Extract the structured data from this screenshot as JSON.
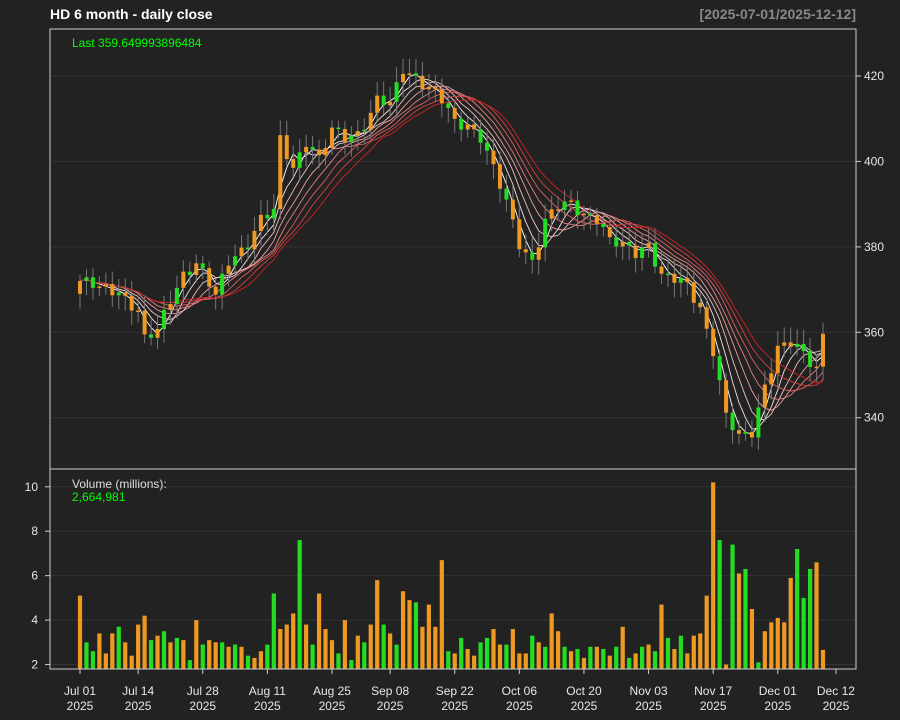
{
  "header": {
    "title": "HD  6 month - daily close",
    "date_range": "[2025-07-01/2025-12-12]"
  },
  "colors": {
    "background": "#222222",
    "up": "#22dd22",
    "down": "#ee9922",
    "ribbon_fast": "#ffffff",
    "ribbon_slow": "#cc2222",
    "label_green": "#00ff00",
    "grid": "#333333"
  },
  "chart_data": [
    {
      "type": "candlestick",
      "panel": "price",
      "last_label": "Last 359.649993896484",
      "ylim": [
        328,
        431
      ],
      "yticks": [
        "340",
        "360",
        "380",
        "400",
        "420"
      ],
      "ytick_values": [
        340,
        360,
        380,
        400,
        420
      ],
      "grid": true,
      "overlay": "moving-average ribbon (white to red)",
      "x_tick_labels": [
        [
          "Jul 01",
          "2025"
        ],
        [
          "Jul 14",
          "2025"
        ],
        [
          "Jul 28",
          "2025"
        ],
        [
          "Aug 11",
          "2025"
        ],
        [
          "Aug 25",
          "2025"
        ],
        [
          "Sep 08",
          "2025"
        ],
        [
          "Sep 22",
          "2025"
        ],
        [
          "Oct 06",
          "2025"
        ],
        [
          "Oct 20",
          "2025"
        ],
        [
          "Nov 03",
          "2025"
        ],
        [
          "Nov 17",
          "2025"
        ],
        [
          "Dec 01",
          "2025"
        ],
        [
          "Dec 12",
          "2025"
        ]
      ],
      "x_tick_index": [
        0,
        9,
        19,
        29,
        39,
        48,
        58,
        68,
        78,
        88,
        98,
        108,
        117
      ],
      "close_keypoints": [
        [
          0,
          372
        ],
        [
          3,
          370
        ],
        [
          6,
          370
        ],
        [
          9,
          365
        ],
        [
          10,
          358
        ],
        [
          12,
          360
        ],
        [
          14,
          368
        ],
        [
          16,
          374
        ],
        [
          18,
          376
        ],
        [
          20,
          371
        ],
        [
          21,
          368
        ],
        [
          23,
          377
        ],
        [
          26,
          381
        ],
        [
          28,
          386
        ],
        [
          30,
          388
        ],
        [
          31,
          405
        ],
        [
          33,
          399
        ],
        [
          35,
          405
        ],
        [
          37,
          400
        ],
        [
          39,
          407
        ],
        [
          41,
          406
        ],
        [
          43,
          407
        ],
        [
          45,
          411
        ],
        [
          46,
          414
        ],
        [
          48,
          413
        ],
        [
          50,
          422
        ],
        [
          52,
          420
        ],
        [
          54,
          417
        ],
        [
          56,
          414
        ],
        [
          58,
          409
        ],
        [
          60,
          409
        ],
        [
          62,
          406
        ],
        [
          64,
          398
        ],
        [
          66,
          390
        ],
        [
          68,
          381
        ],
        [
          70,
          377
        ],
        [
          72,
          386
        ],
        [
          74,
          389
        ],
        [
          76,
          390
        ],
        [
          78,
          388
        ],
        [
          80,
          387
        ],
        [
          82,
          381
        ],
        [
          84,
          380
        ],
        [
          86,
          379
        ],
        [
          88,
          381
        ],
        [
          90,
          373
        ],
        [
          92,
          372
        ],
        [
          94,
          371
        ],
        [
          96,
          366
        ],
        [
          98,
          356
        ],
        [
          100,
          340
        ],
        [
          102,
          335
        ],
        [
          104,
          337
        ],
        [
          106,
          348
        ],
        [
          108,
          356
        ],
        [
          110,
          357
        ],
        [
          112,
          355
        ],
        [
          114,
          352
        ],
        [
          115,
          345
        ],
        [
          116,
          352
        ],
        [
          117,
          359.65
        ]
      ]
    },
    {
      "type": "bar",
      "panel": "volume",
      "label": "Volume (millions):",
      "last_value": "2,664,981",
      "ylim": [
        1.8,
        10.8
      ],
      "yticks": [
        "2",
        "4",
        "6",
        "8",
        "10"
      ],
      "ytick_values": [
        2,
        4,
        6,
        8,
        10
      ],
      "values": [
        5.1,
        3.0,
        2.6,
        3.4,
        2.5,
        3.4,
        3.7,
        3.0,
        2.4,
        3.8,
        4.2,
        3.1,
        3.3,
        3.5,
        3.0,
        3.2,
        3.1,
        2.2,
        4.0,
        2.9,
        3.1,
        3.0,
        3.0,
        2.8,
        2.9,
        2.8,
        2.4,
        2.3,
        2.6,
        2.9,
        5.2,
        3.6,
        3.8,
        4.3,
        7.6,
        3.8,
        2.9,
        5.2,
        3.6,
        3.1,
        2.5,
        4.0,
        2.2,
        3.3,
        3.0,
        3.8,
        5.8,
        3.8,
        3.4,
        2.9,
        5.3,
        4.9,
        4.8,
        3.7,
        4.7,
        3.7,
        6.7,
        2.6,
        2.5,
        3.2,
        2.7,
        2.4,
        3.0,
        3.2,
        3.6,
        2.9,
        2.9,
        3.6,
        2.5,
        2.5,
        3.3,
        3.0,
        2.8,
        4.3,
        3.5,
        2.8,
        2.6,
        2.7,
        2.3,
        2.8,
        2.8,
        2.7,
        2.4,
        2.8,
        3.7,
        2.3,
        2.5,
        2.8,
        2.9,
        2.6,
        4.7,
        3.2,
        2.7,
        3.3,
        2.5,
        3.3,
        3.4,
        5.1,
        10.2,
        7.6,
        2.0,
        7.4,
        6.1,
        6.3,
        4.5,
        2.1,
        3.5,
        3.9,
        4.1,
        3.9,
        5.9,
        7.2,
        5.0,
        6.3,
        6.6,
        2.66
      ],
      "up_down": "DUUDDDUDDDDUDUDUDUDUDDUDUDUDDUUDDDUDUDDDUDUDUDDUDUDDUDDDDUDUDDUUDDUDDDUDUDDUDUDUDUDUDUDUDUDUDUDDDDDUDUDUDUDDDDDUUU"
    }
  ]
}
